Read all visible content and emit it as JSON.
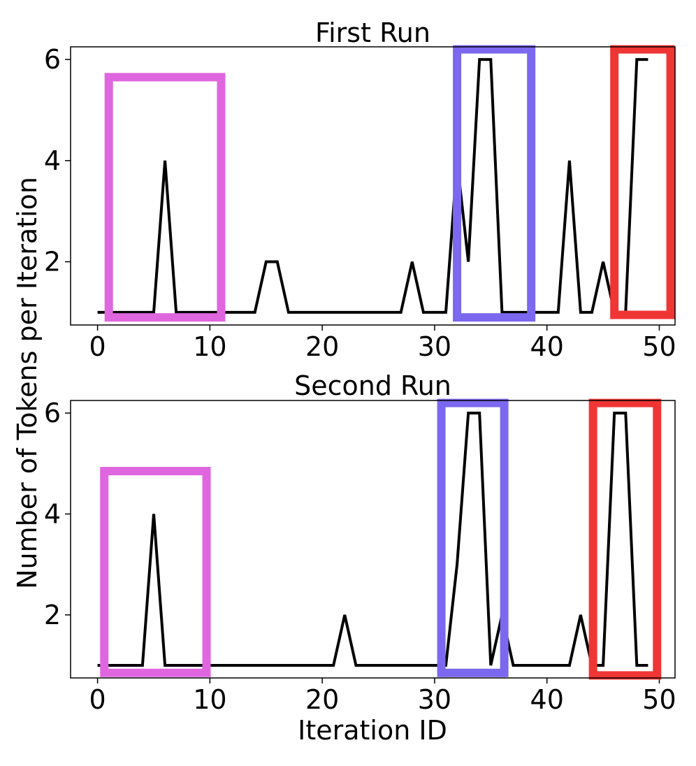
{
  "figure": {
    "ylabel": "Number of Tokens per Iteration",
    "xlabel": "Iteration ID"
  },
  "chart_data": [
    {
      "type": "line",
      "title": "First Run",
      "xlabel": "Iteration ID",
      "ylabel": "Number of Tokens per Iteration",
      "xlim": [
        -2.4,
        51.4
      ],
      "ylim": [
        0.75,
        6.25
      ],
      "xticks": [
        0,
        10,
        20,
        30,
        40,
        50
      ],
      "yticks": [
        2,
        4,
        6
      ],
      "x": [
        0,
        1,
        2,
        3,
        4,
        5,
        6,
        7,
        8,
        9,
        10,
        11,
        12,
        13,
        14,
        15,
        16,
        17,
        18,
        19,
        20,
        21,
        22,
        23,
        24,
        25,
        26,
        27,
        28,
        29,
        30,
        31,
        32,
        33,
        34,
        35,
        36,
        37,
        38,
        39,
        40,
        41,
        42,
        43,
        44,
        45,
        46,
        47,
        48,
        49
      ],
      "y": [
        1,
        1,
        1,
        1,
        1,
        1,
        4,
        1,
        1,
        1,
        1,
        1,
        1,
        1,
        1,
        2,
        2,
        1,
        1,
        1,
        1,
        1,
        1,
        1,
        1,
        1,
        1,
        1,
        2,
        1,
        1,
        1,
        4,
        2,
        6,
        6,
        1,
        1,
        1,
        1,
        1,
        1,
        4,
        1,
        1,
        2,
        1,
        1,
        6,
        6
      ],
      "line_color": "#000000",
      "highlights": [
        {
          "x0": 1,
          "x1": 11,
          "y0": 0.9,
          "y1": 5.65,
          "color": "#e066e0"
        },
        {
          "x0": 32,
          "x1": 38.6,
          "y0": 0.9,
          "y1": 6.2,
          "color": "#7b68ee"
        },
        {
          "x0": 46,
          "x1": 51,
          "y0": 0.95,
          "y1": 6.2,
          "color": "#f03535"
        }
      ]
    },
    {
      "type": "line",
      "title": "Second Run",
      "xlabel": "Iteration ID",
      "ylabel": "Number of Tokens per Iteration",
      "xlim": [
        -2.4,
        51.4
      ],
      "ylim": [
        0.75,
        6.25
      ],
      "xticks": [
        0,
        10,
        20,
        30,
        40,
        50
      ],
      "yticks": [
        2,
        4,
        6
      ],
      "x": [
        0,
        1,
        2,
        3,
        4,
        5,
        6,
        7,
        8,
        9,
        10,
        11,
        12,
        13,
        14,
        15,
        16,
        17,
        18,
        19,
        20,
        21,
        22,
        23,
        24,
        25,
        26,
        27,
        28,
        29,
        30,
        31,
        32,
        33,
        34,
        35,
        36,
        37,
        38,
        39,
        40,
        41,
        42,
        43,
        44,
        45,
        46,
        47,
        48,
        49
      ],
      "y": [
        1,
        1,
        1,
        1,
        1,
        4,
        1,
        1,
        1,
        1,
        1,
        1,
        1,
        1,
        1,
        1,
        1,
        1,
        1,
        1,
        1,
        1,
        2,
        1,
        1,
        1,
        1,
        1,
        1,
        1,
        1,
        1,
        3,
        6,
        6,
        1,
        2,
        1,
        1,
        1,
        1,
        1,
        1,
        2,
        1,
        1,
        6,
        6,
        1,
        1
      ],
      "line_color": "#000000",
      "highlights": [
        {
          "x0": 0.6,
          "x1": 9.7,
          "y0": 0.85,
          "y1": 4.85,
          "color": "#e066e0"
        },
        {
          "x0": 30.6,
          "x1": 36.2,
          "y0": 0.85,
          "y1": 6.2,
          "color": "#7b68ee"
        },
        {
          "x0": 44.1,
          "x1": 49.8,
          "y0": 0.8,
          "y1": 6.2,
          "color": "#f03535"
        }
      ]
    }
  ]
}
